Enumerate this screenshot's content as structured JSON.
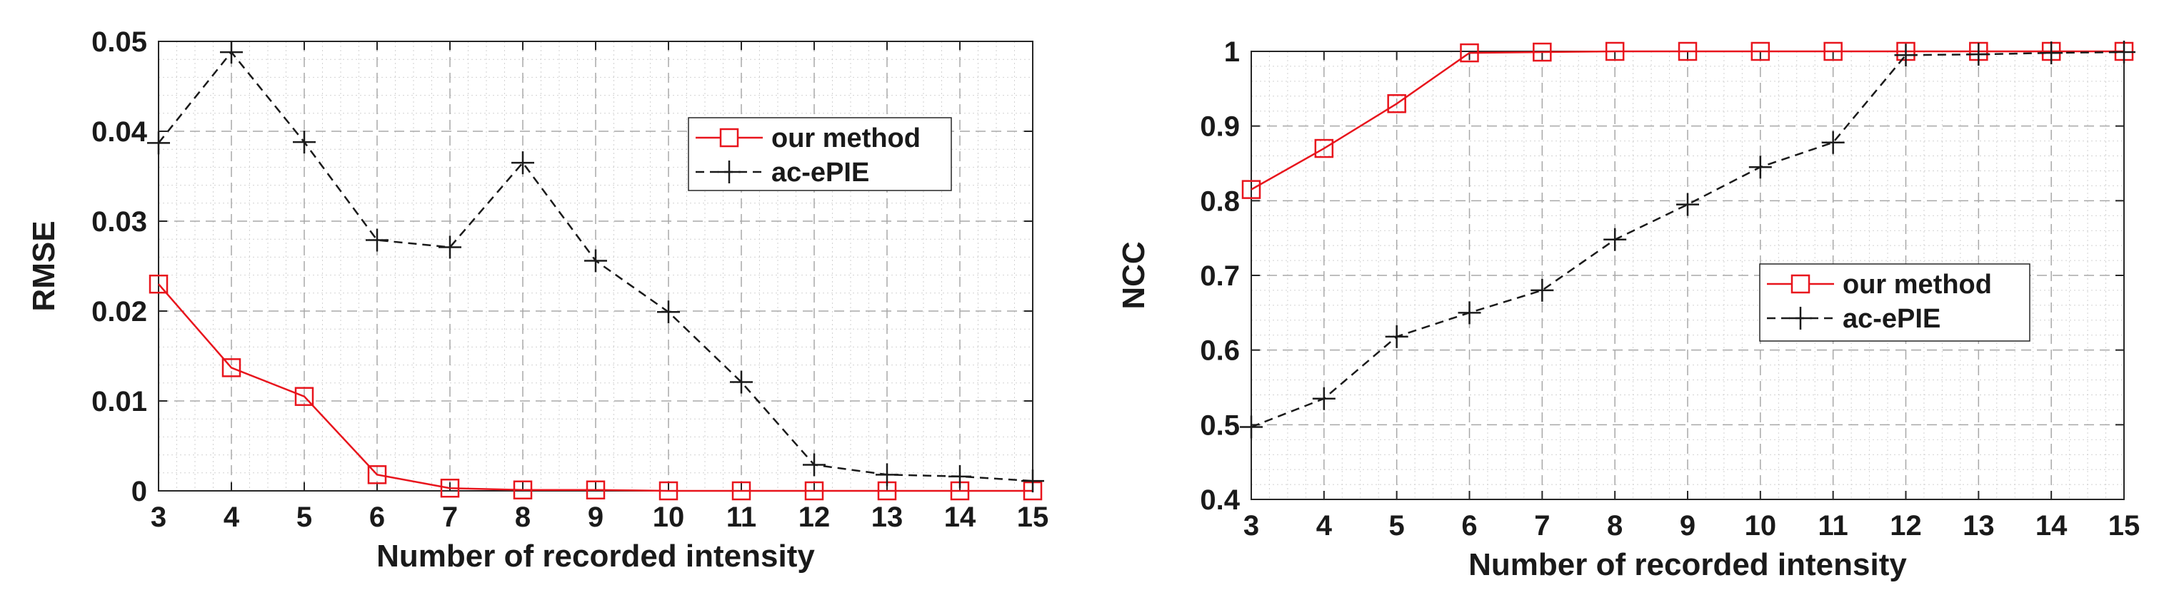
{
  "chart_data": [
    {
      "type": "line",
      "title": "",
      "xlabel": "Number of recorded intensity",
      "ylabel": "RMSE",
      "x": [
        3,
        4,
        5,
        6,
        7,
        8,
        9,
        10,
        11,
        12,
        13,
        14,
        15
      ],
      "xlim": [
        3,
        15
      ],
      "ylim": [
        0,
        0.05
      ],
      "xticks": [
        "3",
        "4",
        "5",
        "6",
        "7",
        "8",
        "9",
        "10",
        "11",
        "12",
        "13",
        "14",
        "15"
      ],
      "yticks": [
        "0",
        "0.01",
        "0.02",
        "0.03",
        "0.04",
        "0.05"
      ],
      "grid": true,
      "legend_position": "top-right",
      "series": [
        {
          "name": "our method",
          "color": "#e8141c",
          "line_style": "solid",
          "marker": "square",
          "values": [
            0.023,
            0.0137,
            0.0105,
            0.0018,
            0.0003,
            0.0001,
            0.0001,
            0.0,
            0.0,
            0.0,
            0.0,
            0.0,
            0.0
          ]
        },
        {
          "name": "ac-ePIE",
          "color": "#1a1a1a",
          "line_style": "dashed",
          "marker": "plus",
          "values": [
            0.0387,
            0.0488,
            0.0388,
            0.0279,
            0.0271,
            0.0365,
            0.0256,
            0.0199,
            0.0121,
            0.0029,
            0.0018,
            0.0016,
            0.0011
          ]
        }
      ]
    },
    {
      "type": "line",
      "title": "",
      "xlabel": "Number of recorded intensity",
      "ylabel": "NCC",
      "x": [
        3,
        4,
        5,
        6,
        7,
        8,
        9,
        10,
        11,
        12,
        13,
        14,
        15
      ],
      "xlim": [
        3,
        15
      ],
      "ylim": [
        0.4,
        1
      ],
      "xticks": [
        "3",
        "4",
        "5",
        "6",
        "7",
        "8",
        "9",
        "10",
        "11",
        "12",
        "13",
        "14",
        "15"
      ],
      "yticks": [
        "0.4",
        "0.5",
        "0.6",
        "0.7",
        "0.8",
        "0.9",
        "1"
      ],
      "grid": true,
      "legend_position": "center-right",
      "series": [
        {
          "name": "our method",
          "color": "#e8141c",
          "line_style": "solid",
          "marker": "square",
          "values": [
            0.815,
            0.87,
            0.93,
            0.998,
            0.999,
            1.0,
            1.0,
            1.0,
            1.0,
            1.0,
            1.0,
            1.0,
            1.0
          ]
        },
        {
          "name": "ac-ePIE",
          "color": "#1a1a1a",
          "line_style": "dashed",
          "marker": "plus",
          "values": [
            0.497,
            0.535,
            0.618,
            0.65,
            0.68,
            0.748,
            0.795,
            0.845,
            0.878,
            0.995,
            0.996,
            0.998,
            0.999
          ]
        }
      ]
    }
  ]
}
